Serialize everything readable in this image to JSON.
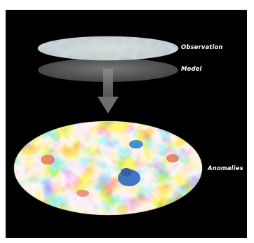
{
  "labels": {
    "observation": "Observation",
    "model": "Model",
    "anomalies": "Anomalies"
  },
  "colors": {
    "background": "#000000",
    "frame": "#ffffff",
    "model_disc": "#5a5a5a",
    "arrow": "#6f6f6f",
    "cold": "#1f7fd6",
    "cold_light": "#66d0f0",
    "neutral": "#f6efc0",
    "warm": "#f3a22c",
    "hot": "#e0421a"
  }
}
